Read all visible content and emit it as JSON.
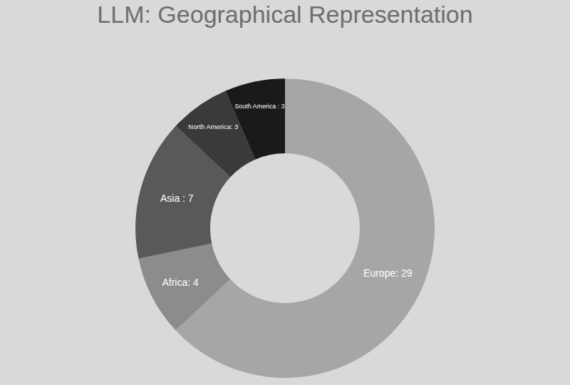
{
  "chart_data": {
    "type": "donut",
    "title": "LLM: Geographical Representation",
    "categories": [
      "Europe",
      "Africa",
      "Asia",
      "North America",
      "South America"
    ],
    "values": [
      29,
      4,
      7,
      3,
      3
    ],
    "value_labels": [
      "Europe: 29",
      "Africa: 4",
      "Asia : 7",
      "North America: 3",
      "South America : 3"
    ],
    "colors": [
      "#a6a6a6",
      "#8c8c8c",
      "#595959",
      "#3a3a3a",
      "#1a1a1a"
    ],
    "data_labels": true
  }
}
